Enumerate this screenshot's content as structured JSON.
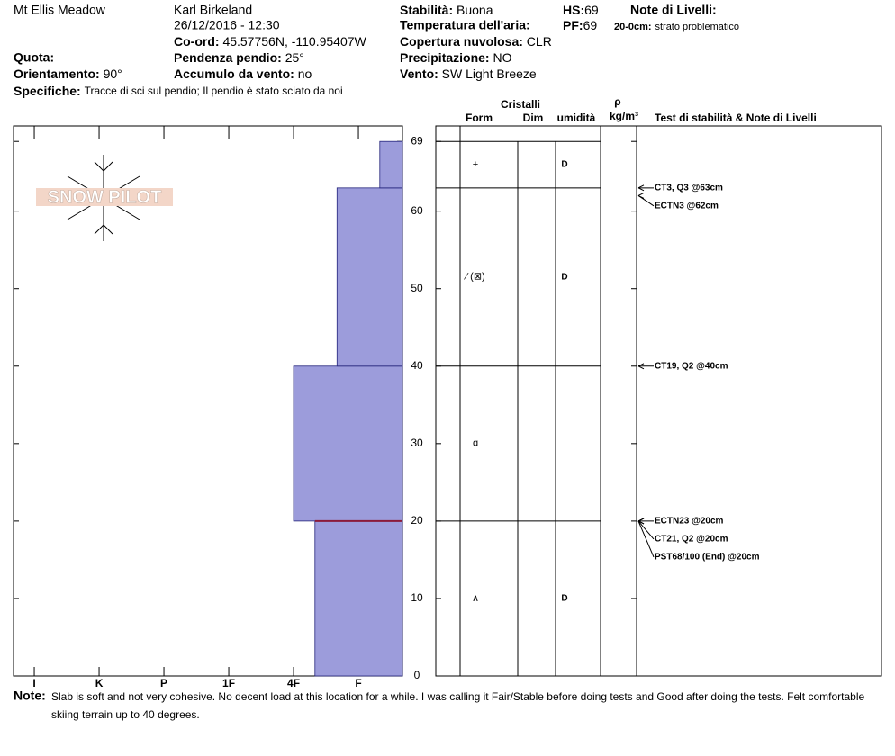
{
  "header": {
    "site": "Mt Ellis Meadow",
    "observer": "Karl Birkeland",
    "datetime": "26/12/2016 - 12:30",
    "coord_label": "Co-ord:",
    "coord": "45.57756N, -110.95407W",
    "quota_label": "Quota:",
    "slope_label": "Pendenza pendio:",
    "slope": "25°",
    "aspect_label": "Orientamento:",
    "aspect": "90°",
    "wind_load_label": "Accumulo da vento:",
    "wind_load": "no",
    "specifics_label": "Specifiche:",
    "specifics": "Tracce di sci sul pendio;  Il pendio è stato sciato da noi",
    "stability_label": "Stabilità:",
    "stability": "Buona",
    "air_temp_label": "Temperatura dell'aria:",
    "cloud_label": "Copertura nuvolosa:",
    "cloud": "CLR",
    "precip_label": "Precipitazione:",
    "precip": "NO",
    "wind_label": "Vento:",
    "wind": "SW Light Breeze",
    "hs_label": "HS:",
    "hs": "69",
    "pf_label": "PF:",
    "pf": "69",
    "layer_notes_label": "Note di Livelli:",
    "layer_note_depth": "20-0cm:",
    "layer_note": "strato problematico"
  },
  "logo": "SNOW PILOT",
  "columns": {
    "crystals": "Cristalli",
    "form": "Form",
    "dim": "Dim",
    "moisture": "umidità",
    "density": "ρ",
    "density_unit": "kg/m³",
    "tests": "Test di stabilità & Note di Livelli"
  },
  "chart_data": {
    "type": "snow-profile",
    "ylim": [
      0,
      71
    ],
    "yticks": [
      0,
      10,
      20,
      30,
      40,
      50,
      60,
      69
    ],
    "xlim": [
      6.32,
      0.32
    ],
    "xticks": [
      {
        "value": 6,
        "label": "I"
      },
      {
        "value": 5,
        "label": "K"
      },
      {
        "value": 4,
        "label": "P"
      },
      {
        "value": 3,
        "label": "1F"
      },
      {
        "value": 2,
        "label": "4F"
      },
      {
        "value": 1,
        "label": "F"
      }
    ],
    "color": "#9c9cdb",
    "critical_depth": 20,
    "critical_color": "#8b1a3a",
    "layers": [
      {
        "bottom": 0,
        "top": 20,
        "hardness": 1.67,
        "form": "∧",
        "moisture": "D"
      },
      {
        "bottom": 20,
        "top": 40,
        "hardness": 2,
        "form": "ɑ",
        "moisture": null
      },
      {
        "bottom": 40,
        "top": 63,
        "hardness": 1.33,
        "form": "⁄ (⊠)",
        "moisture": "D"
      },
      {
        "bottom": 63,
        "top": 69,
        "hardness": 0.67,
        "form": "+",
        "moisture": "D"
      }
    ],
    "tests": [
      {
        "label": "CT3, Q3 @63cm",
        "depth": 63
      },
      {
        "label": "ECTN3 @62cm",
        "depth": 62
      },
      {
        "label": "CT19, Q2 @40cm",
        "depth": 40
      },
      {
        "label": "ECTN23 @20cm",
        "depth": 20
      },
      {
        "label": "CT21, Q2 @20cm",
        "depth": 20
      },
      {
        "label": "PST68/100 (End) @20cm",
        "depth": 20
      }
    ]
  },
  "note": {
    "label": "Note:",
    "lines": [
      "Slab is soft and not very cohesive.  No decent load at this location for a while.  I was calling it Fair/Stable before doing tests and Good after doing the tests.  Felt comfortable",
      "skiing terrain up to 40 degrees."
    ]
  }
}
